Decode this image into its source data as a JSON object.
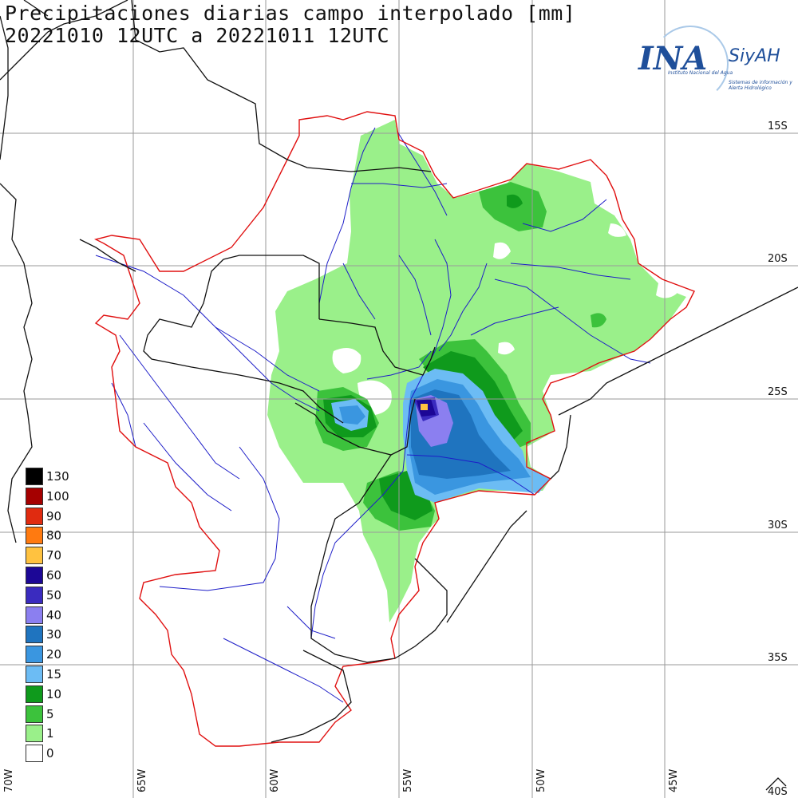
{
  "title": {
    "line1": "Precipitaciones diarias campo interpolado [mm]",
    "line2": "20221010 12UTC a 20221011 12UTC"
  },
  "logo": {
    "ina": "INA",
    "siyah": "SiyAH",
    "sub1": "Instituto Nacional del Agua",
    "sub2": "Sistemas de información y Alerta Hidrológico"
  },
  "legend": [
    {
      "label": "130",
      "color": "#000000"
    },
    {
      "label": "100",
      "color": "#a50000"
    },
    {
      "label": "90",
      "color": "#e02b10"
    },
    {
      "label": "80",
      "color": "#ff7a10"
    },
    {
      "label": "70",
      "color": "#ffc240"
    },
    {
      "label": "60",
      "color": "#1c0796"
    },
    {
      "label": "50",
      "color": "#3a2bbf"
    },
    {
      "label": "40",
      "color": "#8b7ff0"
    },
    {
      "label": "30",
      "color": "#1f74bf"
    },
    {
      "label": "20",
      "color": "#3a96e0"
    },
    {
      "label": "15",
      "color": "#6cbcf4"
    },
    {
      "label": "10",
      "color": "#0f9a1c"
    },
    {
      "label": "5",
      "color": "#3cc23c"
    },
    {
      "label": "1",
      "color": "#9af08a"
    },
    {
      "label": "0",
      "color": "#ffffff"
    }
  ],
  "lat_labels": [
    "15S",
    "20S",
    "25S",
    "30S",
    "35S",
    "40S"
  ],
  "lon_labels": [
    "70W",
    "65W",
    "60W",
    "55W",
    "50W",
    "45W"
  ]
}
